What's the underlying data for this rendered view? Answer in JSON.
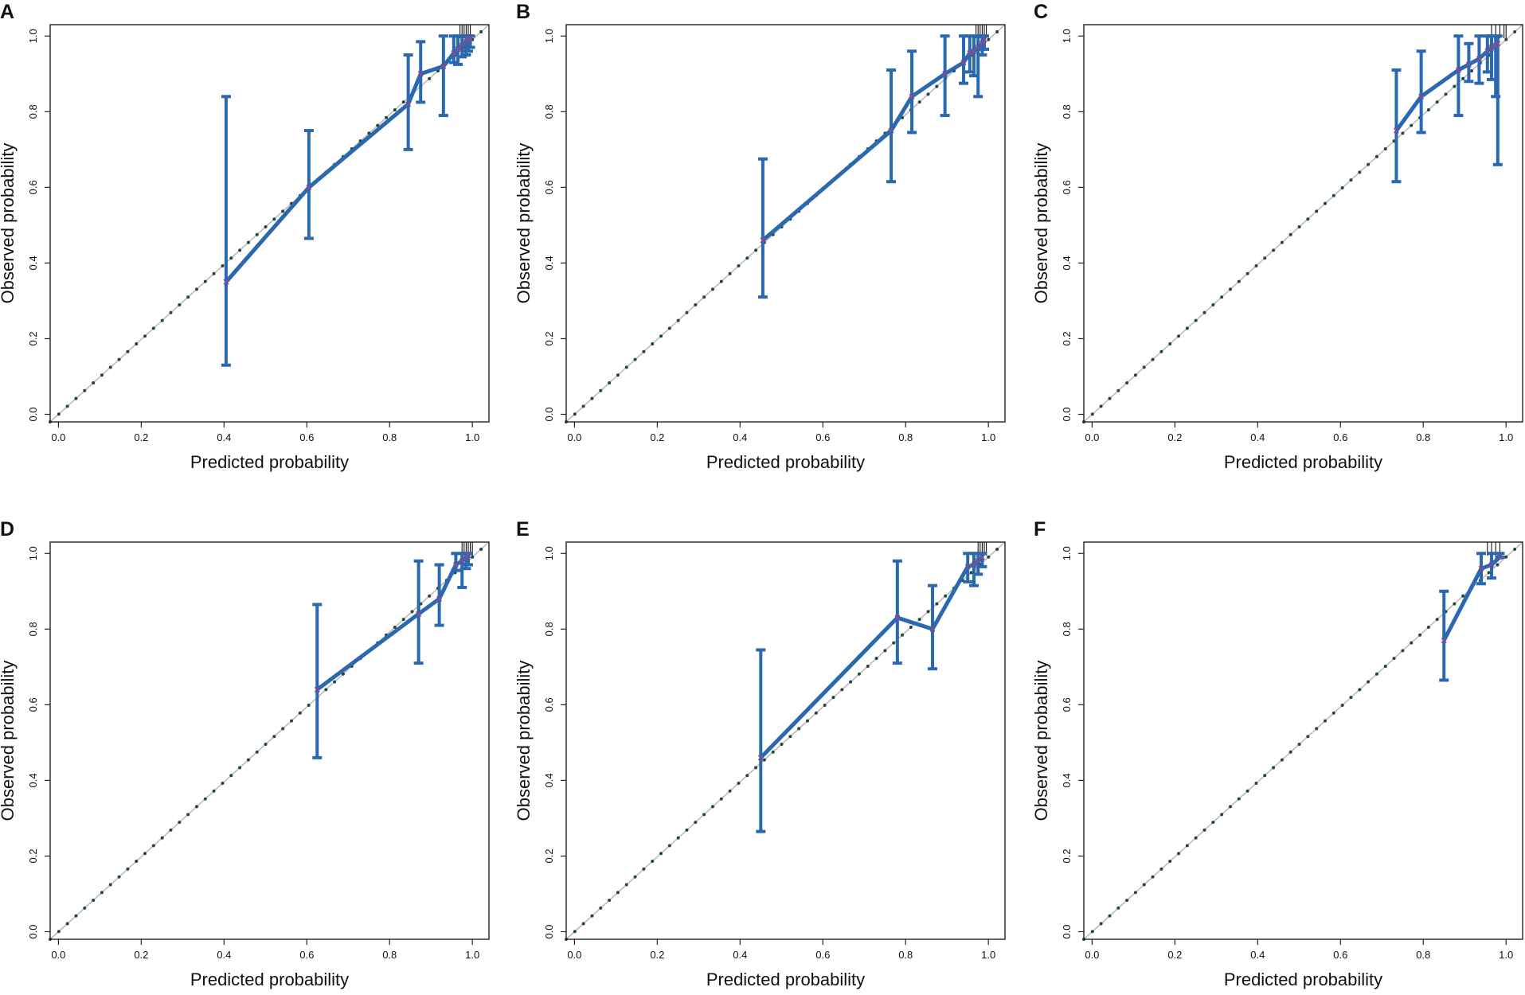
{
  "figure": {
    "colors": {
      "curve": "#2a68b0",
      "ideal_dots": "#1e4a3a",
      "ideal_line": "#bcbcbc",
      "axis": "#222222",
      "marker": "#8b4a8c"
    }
  },
  "chart_data": [
    {
      "type": "line",
      "panel": "A",
      "xlabel": "Predicted probability",
      "ylabel": "Observed probability",
      "xlim": [
        -0.02,
        1.04
      ],
      "ylim": [
        -0.02,
        1.03
      ],
      "xticks": [
        "0.0",
        "0.2",
        "0.4",
        "0.6",
        "0.8",
        "1.0"
      ],
      "yticks": [
        "0.0",
        "0.2",
        "0.4",
        "0.6",
        "0.8",
        "1.0"
      ],
      "reference_line": "ideal y = x",
      "series": [
        {
          "name": "calibration",
          "x": [
            0.405,
            0.605,
            0.845,
            0.875,
            0.93,
            0.955,
            0.965,
            0.975,
            0.985,
            0.99,
            0.995
          ],
          "y": [
            0.35,
            0.6,
            0.82,
            0.9,
            0.92,
            0.955,
            0.965,
            0.975,
            0.985,
            0.99,
            0.995
          ],
          "lower": [
            0.13,
            0.465,
            0.7,
            0.825,
            0.79,
            0.93,
            0.925,
            0.945,
            0.95,
            0.96,
            0.97
          ],
          "upper": [
            0.84,
            0.75,
            0.95,
            0.985,
            1.0,
            1.0,
            1.0,
            1.0,
            1.0,
            1.0,
            1.0
          ]
        }
      ],
      "rug": [
        0.97,
        0.975,
        0.98,
        0.985,
        0.99,
        0.995
      ]
    },
    {
      "type": "line",
      "panel": "B",
      "xlabel": "Predicted probability",
      "ylabel": "Observed probability",
      "xlim": [
        -0.02,
        1.04
      ],
      "ylim": [
        -0.02,
        1.03
      ],
      "xticks": [
        "0.0",
        "0.2",
        "0.4",
        "0.6",
        "0.8",
        "1.0"
      ],
      "yticks": [
        "0.0",
        "0.2",
        "0.4",
        "0.6",
        "0.8",
        "1.0"
      ],
      "reference_line": "ideal y = x",
      "series": [
        {
          "name": "calibration",
          "x": [
            0.455,
            0.765,
            0.815,
            0.895,
            0.94,
            0.955,
            0.965,
            0.975,
            0.985,
            0.99
          ],
          "y": [
            0.46,
            0.75,
            0.84,
            0.9,
            0.93,
            0.955,
            0.96,
            0.97,
            0.98,
            0.99
          ],
          "lower": [
            0.31,
            0.615,
            0.745,
            0.79,
            0.875,
            0.905,
            0.895,
            0.84,
            0.95,
            0.965
          ],
          "upper": [
            0.675,
            0.91,
            0.96,
            1.0,
            1.0,
            1.0,
            1.0,
            1.0,
            1.0,
            1.0
          ]
        }
      ],
      "rug": [
        0.97,
        0.975,
        0.98,
        0.985,
        0.99,
        0.995
      ]
    },
    {
      "type": "line",
      "panel": "C",
      "xlabel": "Predicted probability",
      "ylabel": "Observed probability",
      "xlim": [
        -0.02,
        1.04
      ],
      "ylim": [
        -0.02,
        1.03
      ],
      "xticks": [
        "0.0",
        "0.2",
        "0.4",
        "0.6",
        "0.8",
        "1.0"
      ],
      "yticks": [
        "0.0",
        "0.2",
        "0.4",
        "0.6",
        "0.8",
        "1.0"
      ],
      "reference_line": "ideal y = x",
      "series": [
        {
          "name": "calibration",
          "x": [
            0.735,
            0.795,
            0.885,
            0.91,
            0.935,
            0.955,
            0.965,
            0.975,
            0.98
          ],
          "y": [
            0.75,
            0.84,
            0.91,
            0.925,
            0.94,
            0.96,
            0.97,
            0.975,
            0.98
          ],
          "lower": [
            0.615,
            0.745,
            0.79,
            0.88,
            0.875,
            0.905,
            0.885,
            0.84,
            0.66
          ],
          "upper": [
            0.91,
            0.96,
            1.0,
            0.98,
            1.0,
            1.0,
            1.0,
            1.0,
            1.0
          ]
        }
      ],
      "rug": [
        0.965,
        0.975,
        0.985,
        0.995,
        1.0
      ]
    },
    {
      "type": "line",
      "panel": "D",
      "xlabel": "Predicted probability",
      "ylabel": "Observed probability",
      "xlim": [
        -0.02,
        1.04
      ],
      "ylim": [
        -0.02,
        1.03
      ],
      "xticks": [
        "0.0",
        "0.2",
        "0.4",
        "0.6",
        "0.8",
        "1.0"
      ],
      "yticks": [
        "0.0",
        "0.2",
        "0.4",
        "0.6",
        "0.8",
        "1.0"
      ],
      "reference_line": "ideal y = x",
      "series": [
        {
          "name": "calibration",
          "x": [
            0.625,
            0.87,
            0.92,
            0.96,
            0.975,
            0.985,
            0.99
          ],
          "y": [
            0.64,
            0.84,
            0.88,
            0.97,
            0.98,
            0.99,
            0.995
          ],
          "lower": [
            0.46,
            0.71,
            0.81,
            0.955,
            0.91,
            0.96,
            0.97
          ],
          "upper": [
            0.865,
            0.98,
            0.97,
            1.0,
            1.0,
            1.0,
            1.0
          ]
        }
      ],
      "rug": [
        0.975,
        0.98,
        0.985,
        0.99,
        0.995,
        1.0
      ]
    },
    {
      "type": "line",
      "panel": "E",
      "xlabel": "Predicted probability",
      "ylabel": "Observed probability",
      "xlim": [
        -0.02,
        1.04
      ],
      "ylim": [
        -0.02,
        1.03
      ],
      "xticks": [
        "0.0",
        "0.2",
        "0.4",
        "0.6",
        "0.8",
        "1.0"
      ],
      "yticks": [
        "0.0",
        "0.2",
        "0.4",
        "0.6",
        "0.8",
        "1.0"
      ],
      "reference_line": "ideal y = x",
      "series": [
        {
          "name": "calibration",
          "x": [
            0.45,
            0.78,
            0.865,
            0.95,
            0.965,
            0.975,
            0.985
          ],
          "y": [
            0.46,
            0.83,
            0.8,
            0.965,
            0.97,
            0.98,
            0.99
          ],
          "lower": [
            0.265,
            0.71,
            0.695,
            0.925,
            0.915,
            0.945,
            0.965
          ],
          "upper": [
            0.745,
            0.98,
            0.915,
            1.0,
            1.0,
            1.0,
            1.0
          ]
        }
      ],
      "rug": [
        0.975,
        0.98,
        0.985,
        0.99,
        0.995
      ]
    },
    {
      "type": "line",
      "panel": "F",
      "xlabel": "Predicted probability",
      "ylabel": "Observed probability",
      "xlim": [
        -0.02,
        1.04
      ],
      "ylim": [
        -0.02,
        1.03
      ],
      "xticks": [
        "0.0",
        "0.2",
        "0.4",
        "0.6",
        "0.8",
        "1.0"
      ],
      "yticks": [
        "0.0",
        "0.2",
        "0.4",
        "0.6",
        "0.8",
        "1.0"
      ],
      "reference_line": "ideal y = x",
      "series": [
        {
          "name": "calibration",
          "x": [
            0.85,
            0.94,
            0.965,
            0.985
          ],
          "y": [
            0.77,
            0.96,
            0.97,
            0.99
          ],
          "lower": [
            0.665,
            0.92,
            0.935,
            0.99
          ],
          "upper": [
            0.9,
            1.0,
            1.0,
            1.0
          ]
        }
      ],
      "rug": [
        0.955,
        0.965,
        0.975,
        0.985
      ]
    }
  ]
}
